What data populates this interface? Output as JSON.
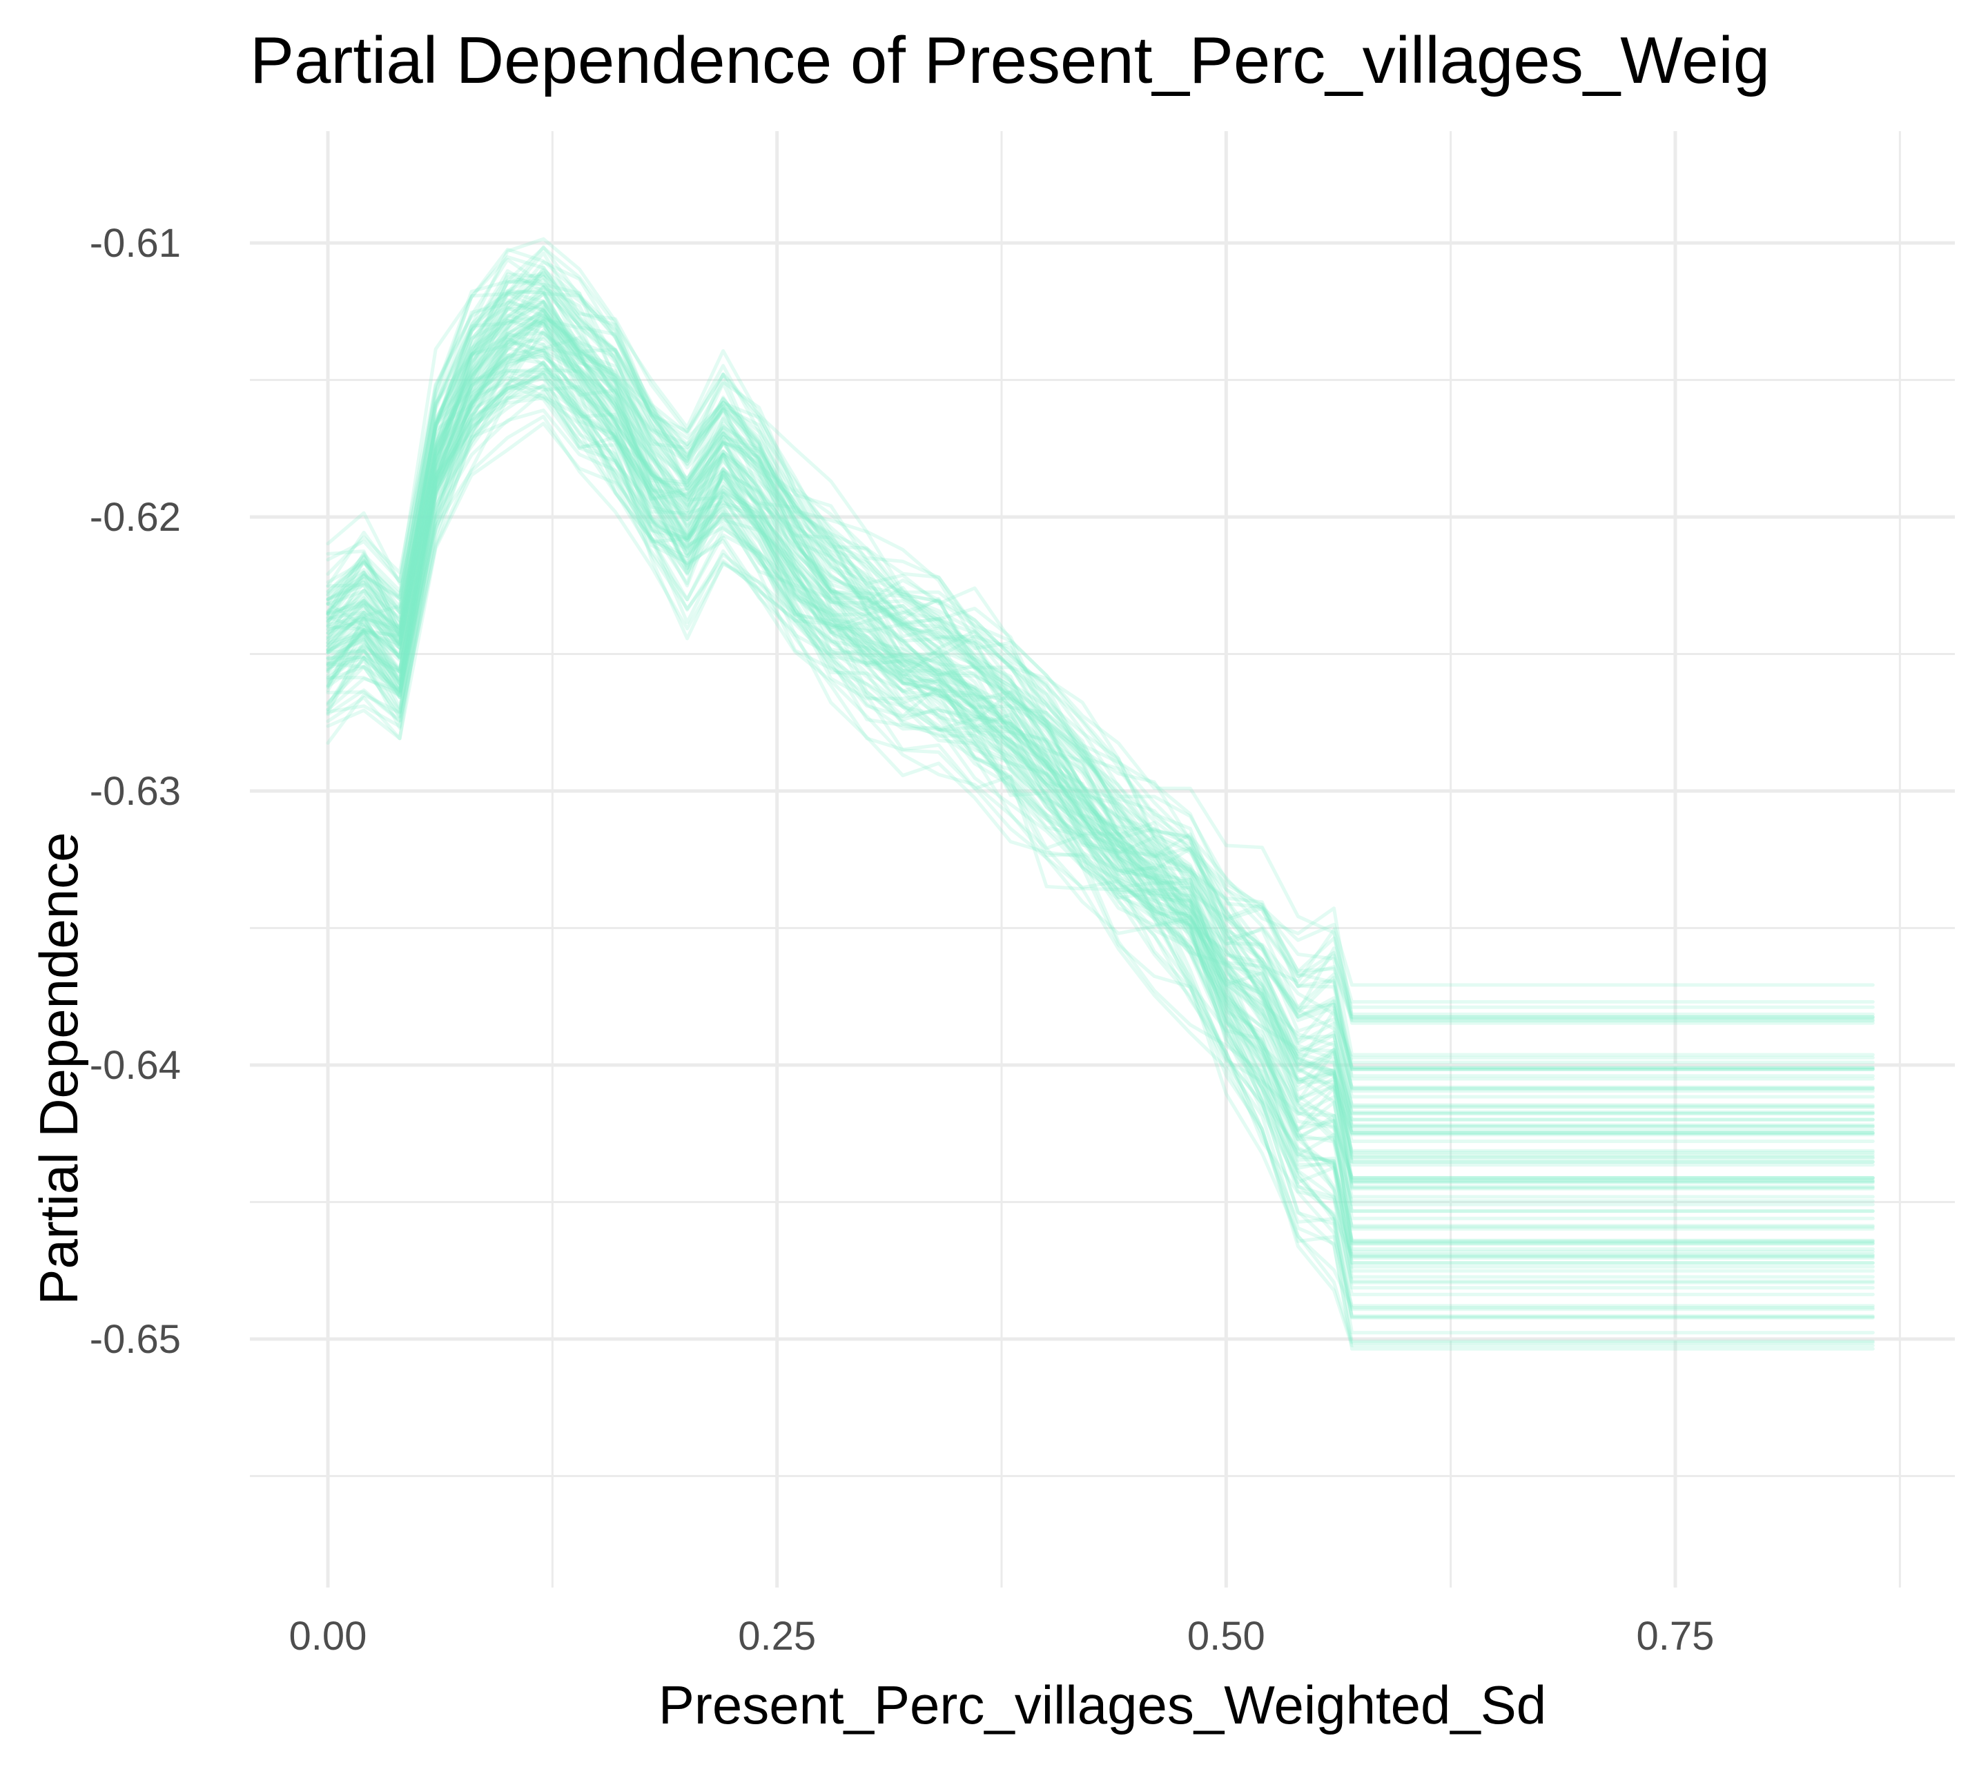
{
  "colors": {
    "line": "#7eeec8",
    "grid": "#ebebeb",
    "tick_text": "#4d4d4d",
    "title_text": "#000000",
    "background": "#ffffff"
  },
  "chart_data": {
    "type": "line",
    "title": "Partial Dependence of Present_Perc_villages_Weig",
    "xlabel": "Present_Perc_villages_Weighted_Sd",
    "ylabel": "Partial Dependence",
    "xlim": [
      -0.085,
      0.9
    ],
    "ylim": [
      -0.6555,
      -0.6085
    ],
    "x_ticks": [
      0.0,
      0.25,
      0.5,
      0.75
    ],
    "x_tick_labels": [
      "0.00",
      "0.25",
      "0.50",
      "0.75"
    ],
    "y_ticks": [
      -0.61,
      -0.62,
      -0.63,
      -0.64,
      -0.65
    ],
    "y_tick_labels": [
      "-0.61",
      "-0.62",
      "-0.63",
      "-0.64",
      "-0.65"
    ],
    "grid": true,
    "legend": "none",
    "line_opacity": 0.22,
    "line_count": 100,
    "x": [
      0.0,
      0.02,
      0.04,
      0.06,
      0.08,
      0.1,
      0.12,
      0.14,
      0.16,
      0.18,
      0.2,
      0.22,
      0.24,
      0.26,
      0.28,
      0.3,
      0.32,
      0.34,
      0.36,
      0.38,
      0.4,
      0.42,
      0.44,
      0.46,
      0.48,
      0.5,
      0.52,
      0.54,
      0.56,
      0.57,
      0.6,
      0.64,
      0.68,
      0.72,
      0.76,
      0.8,
      0.86
    ],
    "series": [
      {
        "values": [
          -0.6245,
          -0.6235,
          -0.625,
          -0.618,
          -0.615,
          -0.6135,
          -0.613,
          -0.6145,
          -0.616,
          -0.6185,
          -0.62,
          -0.618,
          -0.6195,
          -0.6215,
          -0.623,
          -0.624,
          -0.625,
          -0.6255,
          -0.6265,
          -0.6275,
          -0.629,
          -0.6305,
          -0.632,
          -0.633,
          -0.634,
          -0.6365,
          -0.638,
          -0.6405,
          -0.6405,
          -0.6435,
          -0.6435,
          -0.6435,
          -0.6435,
          -0.6435,
          -0.6435,
          -0.6435,
          -0.6435
        ]
      }
    ]
  }
}
